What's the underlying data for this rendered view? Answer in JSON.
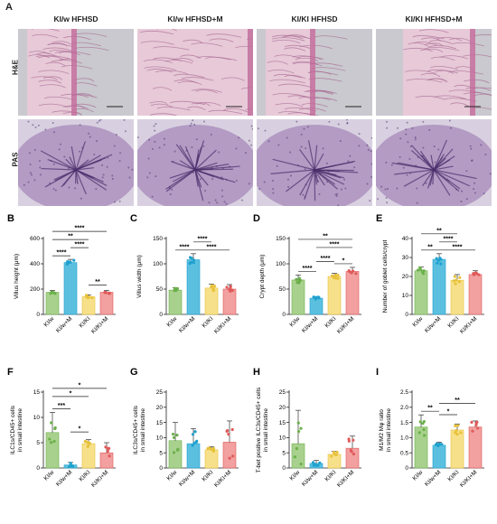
{
  "panelA": {
    "letter": "A",
    "columns": [
      "KI/w HFHSD",
      "KI/w HFHSD+M",
      "KI/KI HFHSD",
      "KI/KI HFHSD+M"
    ],
    "rows": [
      "H&E",
      "PAS"
    ],
    "colors": {
      "he": "#e7c9d8",
      "he_dark": "#a86a92",
      "pas": "#b39bc4",
      "pas_dark": "#4a2e6b"
    }
  },
  "groups": [
    "KI/w",
    "KI/w+M",
    "KI/KI",
    "KI/KI+M"
  ],
  "group_colors": [
    "#a9d18e",
    "#5bc0e0",
    "#f7e08a",
    "#f2a0a0"
  ],
  "dot_colors": [
    "#6bb04a",
    "#1fa1cf",
    "#e8c23a",
    "#e05a5a"
  ],
  "chart_data": [
    {
      "letter": "B",
      "type": "bar",
      "ylabel": "Villus height (μm)",
      "ylim": [
        0,
        600
      ],
      "yticks": [
        0,
        200,
        400,
        600
      ],
      "values": [
        175,
        410,
        140,
        175
      ],
      "errors": [
        15,
        25,
        15,
        15
      ],
      "sig": [
        {
          "a": 0,
          "b": 1,
          "l": "****",
          "lvl": 1
        },
        {
          "a": 1,
          "b": 2,
          "l": "****",
          "lvl": 2
        },
        {
          "a": 0,
          "b": 2,
          "l": "**",
          "lvl": 3
        },
        {
          "a": 0,
          "b": 3,
          "l": "****",
          "lvl": 4
        },
        {
          "a": 2,
          "b": 3,
          "l": "**",
          "lvl": 1.2
        }
      ]
    },
    {
      "letter": "C",
      "type": "bar",
      "ylabel": "Villus width (μm)",
      "ylim": [
        0,
        150
      ],
      "yticks": [
        0,
        50,
        100,
        150
      ],
      "values": [
        48,
        108,
        52,
        50
      ],
      "errors": [
        5,
        12,
        8,
        9
      ],
      "sig": [
        {
          "a": 0,
          "b": 1,
          "l": "****",
          "lvl": 1
        },
        {
          "a": 1,
          "b": 2,
          "l": "****",
          "lvl": 2
        },
        {
          "a": 1,
          "b": 3,
          "l": "****",
          "lvl": 1
        }
      ]
    },
    {
      "letter": "D",
      "type": "bar",
      "ylabel": "Crypt depth (μm)",
      "ylim": [
        0,
        150
      ],
      "yticks": [
        0,
        50,
        100,
        150
      ],
      "values": [
        68,
        32,
        75,
        85
      ],
      "errors": [
        10,
        3,
        6,
        8
      ],
      "sig": [
        {
          "a": 0,
          "b": 1,
          "l": "****",
          "lvl": 1
        },
        {
          "a": 1,
          "b": 2,
          "l": "****",
          "lvl": 2
        },
        {
          "a": 2,
          "b": 3,
          "l": "*",
          "lvl": 1
        },
        {
          "a": 1,
          "b": 3,
          "l": "****",
          "lvl": 3
        },
        {
          "a": 0,
          "b": 3,
          "l": "**",
          "lvl": 4
        }
      ]
    },
    {
      "letter": "E",
      "type": "bar",
      "ylabel": "Number of goblet cells/crypt",
      "ylim": [
        0,
        40
      ],
      "yticks": [
        0,
        10,
        20,
        30,
        40
      ],
      "values": [
        23,
        29,
        18,
        21
      ],
      "errors": [
        2,
        3,
        3,
        2
      ],
      "sig": [
        {
          "a": 0,
          "b": 1,
          "l": "**",
          "lvl": 1
        },
        {
          "a": 1,
          "b": 2,
          "l": "****",
          "lvl": 2
        },
        {
          "a": 1,
          "b": 3,
          "l": "****",
          "lvl": 1
        },
        {
          "a": 0,
          "b": 2,
          "l": "**",
          "lvl": 3
        }
      ]
    },
    {
      "letter": "F",
      "type": "bar",
      "ylabel": "ILC1s/CD45+ cells in small intestine",
      "ylim": [
        0,
        15
      ],
      "yticks": [
        0,
        5,
        10,
        15
      ],
      "values": [
        7,
        0.6,
        4.8,
        3
      ],
      "errors": [
        4,
        0.5,
        0.8,
        2
      ],
      "sig": [
        {
          "a": 0,
          "b": 1,
          "l": "***",
          "lvl": 1
        },
        {
          "a": 1,
          "b": 2,
          "l": "*",
          "lvl": 1.5
        },
        {
          "a": 0,
          "b": 2,
          "l": "*",
          "lvl": 2.5
        },
        {
          "a": 0,
          "b": 3,
          "l": "*",
          "lvl": 3.5
        }
      ]
    },
    {
      "letter": "G",
      "type": "bar",
      "ylabel": "ILC3s/CD45+ cells in small intestine",
      "ylim": [
        0,
        25
      ],
      "yticks": [
        0,
        5,
        10,
        15,
        20,
        25
      ],
      "values": [
        9,
        8,
        6,
        8.5
      ],
      "errors": [
        6,
        5,
        1,
        7
      ],
      "sig": []
    },
    {
      "letter": "H",
      "type": "bar",
      "ylabel": "T-bet positive ILC3s/CD45+ cells in small intestine",
      "ylim": [
        0,
        25
      ],
      "yticks": [
        0,
        5,
        10,
        15,
        20,
        25
      ],
      "values": [
        8,
        1.5,
        4.5,
        6.5
      ],
      "errors": [
        11,
        1,
        1,
        4
      ],
      "sig": []
    },
    {
      "letter": "I",
      "type": "bar",
      "ylabel": "M1/M2 Mφ ratio in small intestine",
      "ylim": [
        0,
        2.5
      ],
      "yticks": [
        0,
        0.5,
        1.0,
        1.5,
        2.0,
        2.5
      ],
      "values": [
        1.35,
        0.75,
        1.25,
        1.35
      ],
      "errors": [
        0.4,
        0.1,
        0.2,
        0.2
      ],
      "sig": [
        {
          "a": 0,
          "b": 1,
          "l": "**",
          "lvl": 1
        },
        {
          "a": 1,
          "b": 2,
          "l": "*",
          "lvl": 1.7
        },
        {
          "a": 1,
          "b": 3,
          "l": "**",
          "lvl": 2.7
        }
      ]
    }
  ]
}
